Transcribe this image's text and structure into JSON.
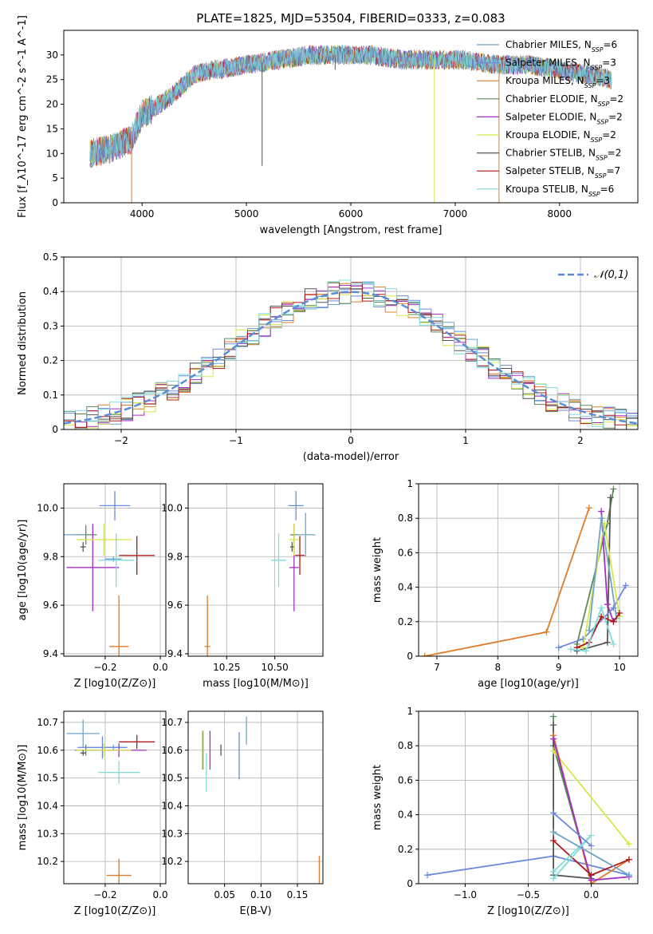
{
  "figure_title": "PLATE=1825, MJD=53504, FIBERID=0333, z=0.083",
  "models": [
    {
      "label": "Chabrier MILES, N_SSP=6",
      "imf": "Chabrier",
      "lib": "MILES",
      "nssp": "6",
      "color": "#6ea5c8"
    },
    {
      "label": "Salpeter MILES, N_SSP=3",
      "imf": "Salpeter",
      "lib": "MILES",
      "nssp": "3",
      "color": "#6b89de"
    },
    {
      "label": "Kroupa MILES, N_SSP=3",
      "imf": "Kroupa",
      "lib": "MILES",
      "nssp": "3",
      "color": "#e07b27"
    },
    {
      "label": "Chabrier ELODIE, N_SSP=2",
      "imf": "Chabrier",
      "lib": "ELODIE",
      "nssp": "2",
      "color": "#5a8a5a"
    },
    {
      "label": "Salpeter ELODIE, N_SSP=2",
      "imf": "Salpeter",
      "lib": "ELODIE",
      "nssp": "2",
      "color": "#a32fc2"
    },
    {
      "label": "Kroupa ELODIE, N_SSP=2",
      "imf": "Kroupa",
      "lib": "ELODIE",
      "nssp": "2",
      "color": "#d8e64a"
    },
    {
      "label": "Chabrier STELIB, N_SSP=2",
      "imf": "Chabrier",
      "lib": "STELIB",
      "nssp": "2",
      "color": "#555555"
    },
    {
      "label": "Salpeter STELIB, N_SSP=7",
      "imf": "Salpeter",
      "lib": "STELIB",
      "nssp": "7",
      "color": "#b01818"
    },
    {
      "label": "Kroupa STELIB, N_SSP=6",
      "imf": "Kroupa",
      "lib": "STELIB",
      "nssp": "6",
      "color": "#7fdcdc"
    }
  ],
  "chart_data": [
    {
      "id": "spectrum",
      "type": "line",
      "xlabel": "wavelength [Angstrom, rest frame]",
      "ylabel": "Flux [f_λ10^-17 erg cm^-2 s^-1 A^-1]",
      "xlim": [
        3250,
        8750
      ],
      "ylim": [
        0,
        35
      ],
      "xticks": [
        4000,
        5000,
        6000,
        7000,
        8000
      ],
      "yticks": [
        0,
        5,
        10,
        15,
        20,
        25,
        30
      ],
      "legend_position": "upper right",
      "continuum_x": [
        3500,
        3700,
        3900,
        4000,
        4100,
        4300,
        4500,
        4700,
        5000,
        5300,
        5600,
        5900,
        6200,
        6500,
        6800,
        7100,
        7400,
        7700,
        8000,
        8300,
        8500
      ],
      "continuum_y": [
        10,
        11,
        13,
        18,
        19,
        22,
        26,
        27,
        28,
        29,
        30,
        30,
        30,
        29,
        29,
        29,
        28,
        28,
        27,
        26,
        25
      ],
      "sharp_dips": [
        {
          "x": 5150,
          "y": 7.5
        },
        {
          "x": 5850,
          "y": 27
        },
        {
          "x": 6800,
          "y": 0
        },
        {
          "x": 7420,
          "y": 0
        },
        {
          "x": 3900,
          "y": 0
        }
      ],
      "grid": false
    },
    {
      "id": "residual_hist",
      "type": "histogram",
      "xlabel": "(data-model)/error",
      "ylabel": "Normed distribution",
      "xlim": [
        -2.5,
        2.5
      ],
      "ylim": [
        0,
        0.5
      ],
      "xticks": [
        -2,
        -1,
        0,
        1,
        2
      ],
      "yticks": [
        0.0,
        0.1,
        0.2,
        0.3,
        0.4,
        0.5
      ],
      "legend": [
        {
          "label": "𝒩(0,1)",
          "color": "#5b8dd6",
          "style": "dashed"
        }
      ],
      "bin_width": 0.1,
      "grid": true
    },
    {
      "id": "age_vs_Z",
      "type": "errorbar",
      "xlabel": "Z [log10(Z/Z⊙)]",
      "ylabel": "age  [log10(age/yr)]",
      "xlim": [
        -0.35,
        0.02
      ],
      "ylim": [
        9.39,
        10.1
      ],
      "xticks": [
        -0.2,
        0.0
      ],
      "xticklabels": [
        "−0.2",
        "0.0"
      ],
      "yticks": [
        9.4,
        9.6,
        9.8,
        10.0
      ],
      "yticklabels": [
        "9.4",
        "9.6",
        "9.8",
        "10.0"
      ],
      "points": [
        {
          "model": 0,
          "x": -0.17,
          "y": 9.79,
          "xerr": 0.03,
          "yerr": 0.01
        },
        {
          "model": 1,
          "x": -0.165,
          "y": 10.01,
          "xerr": 0.055,
          "yerr": 0.06
        },
        {
          "model": 2,
          "x": -0.15,
          "y": 9.43,
          "xerr": 0.035,
          "yerr": 0.21
        },
        {
          "model": 3,
          "x": -0.27,
          "y": 9.89,
          "xerr": 0.04,
          "yerr": 0.04
        },
        {
          "model": 4,
          "x": -0.245,
          "y": 9.755,
          "xerr": 0.095,
          "yerr": 0.18
        },
        {
          "model": 5,
          "x": -0.205,
          "y": 9.87,
          "xerr": 0.1,
          "yerr": 0.065
        },
        {
          "model": 6,
          "x": -0.28,
          "y": 9.84,
          "xerr": 0.01,
          "yerr": 0.02
        },
        {
          "model": 7,
          "x": -0.085,
          "y": 9.805,
          "xerr": 0.065,
          "yerr": 0.08
        },
        {
          "model": 8,
          "x": -0.16,
          "y": 9.785,
          "xerr": 0.065,
          "yerr": 0.11
        },
        {
          "model": 0,
          "x": -0.315,
          "y": 9.89,
          "xerr": 0.045,
          "yerr": 0.0
        }
      ],
      "grid": true
    },
    {
      "id": "age_vs_mass",
      "type": "errorbar",
      "xlabel": "mass [log10(M/M⊙)]",
      "ylabel": "",
      "xlim": [
        10.05,
        10.75
      ],
      "ylim": [
        9.39,
        10.1
      ],
      "xticks": [
        10.25,
        10.5
      ],
      "xticklabels": [
        "10.25",
        "10.50"
      ],
      "yticks": [
        9.4,
        9.6,
        9.8,
        10.0
      ],
      "yticklabels": [
        "9.4",
        "9.6",
        "9.8",
        "10.0"
      ],
      "points": [
        {
          "model": 1,
          "x": 10.61,
          "y": 10.01,
          "xerr": 0.04,
          "yerr": 0.06
        },
        {
          "model": 2,
          "x": 10.15,
          "y": 9.43,
          "xerr": 0.015,
          "yerr": 0.21
        },
        {
          "model": 3,
          "x": 10.6,
          "y": 9.89,
          "xerr": 0.02,
          "yerr": 0.04
        },
        {
          "model": 4,
          "x": 10.6,
          "y": 9.755,
          "xerr": 0.025,
          "yerr": 0.18
        },
        {
          "model": 5,
          "x": 10.6,
          "y": 9.87,
          "xerr": 0.025,
          "yerr": 0.065
        },
        {
          "model": 6,
          "x": 10.59,
          "y": 9.84,
          "xerr": 0.01,
          "yerr": 0.02
        },
        {
          "model": 7,
          "x": 10.63,
          "y": 9.805,
          "xerr": 0.025,
          "yerr": 0.08
        },
        {
          "model": 8,
          "x": 10.52,
          "y": 9.785,
          "xerr": 0.04,
          "yerr": 0.11
        },
        {
          "model": 0,
          "x": 10.66,
          "y": 9.89,
          "xerr": 0.05,
          "yerr": 0.09
        }
      ],
      "grid": true
    },
    {
      "id": "weight_vs_age",
      "type": "line",
      "xlabel": "age  [log10(age/yr)]",
      "ylabel": "mass weight",
      "xlim": [
        6.7,
        10.3
      ],
      "ylim": [
        0,
        1
      ],
      "xticks": [
        7,
        8,
        9,
        10
      ],
      "yticks": [
        0.0,
        0.2,
        0.4,
        0.6,
        0.8,
        1.0
      ],
      "series": [
        {
          "model": 2,
          "x": [
            6.8,
            8.8,
            9.5
          ],
          "y": [
            0.0,
            0.14,
            0.86
          ]
        },
        {
          "model": 3,
          "x": [
            9.3,
            9.8,
            9.9
          ],
          "y": [
            0.07,
            0.77,
            0.97
          ]
        },
        {
          "model": 6,
          "x": [
            9.3,
            9.8,
            9.85
          ],
          "y": [
            0.03,
            0.08,
            0.92
          ]
        },
        {
          "model": 4,
          "x": [
            9.7,
            9.8,
            9.9
          ],
          "y": [
            0.84,
            0.3,
            0.2
          ]
        },
        {
          "model": 1,
          "x": [
            9.0,
            9.4,
            9.9,
            10.1
          ],
          "y": [
            0.05,
            0.1,
            0.28,
            0.41
          ]
        },
        {
          "model": 5,
          "x": [
            9.4,
            9.75,
            10.0
          ],
          "y": [
            0.05,
            0.77,
            0.23
          ]
        },
        {
          "model": 0,
          "x": [
            9.5,
            9.7,
            9.95
          ],
          "y": [
            0.15,
            0.8,
            0.22
          ]
        },
        {
          "model": 7,
          "x": [
            9.3,
            9.5,
            9.7,
            9.9,
            10.0
          ],
          "y": [
            0.05,
            0.08,
            0.23,
            0.2,
            0.25
          ]
        },
        {
          "model": 8,
          "x": [
            9.2,
            9.45,
            9.7,
            9.9
          ],
          "y": [
            0.04,
            0.03,
            0.28,
            0.07
          ]
        }
      ],
      "grid": true
    },
    {
      "id": "mass_vs_Z",
      "type": "errorbar",
      "xlabel": "Z [log10(Z/Z⊙)]",
      "ylabel": "mass [log10(M/M⊙)]",
      "xlim": [
        -0.35,
        0.02
      ],
      "ylim": [
        10.12,
        10.74
      ],
      "xticks": [
        -0.2,
        0.0
      ],
      "xticklabels": [
        "−0.2",
        "0.0"
      ],
      "yticks": [
        10.2,
        10.3,
        10.4,
        10.5,
        10.6,
        10.7
      ],
      "yticklabels": [
        "10.2",
        "10.3",
        "10.4",
        "10.5",
        "10.6",
        "10.7"
      ],
      "points": [
        {
          "model": 0,
          "x": -0.17,
          "y": 10.61,
          "xerr": 0.03,
          "yerr": 0.01
        },
        {
          "model": 1,
          "x": -0.21,
          "y": 10.61,
          "xerr": 0.09,
          "yerr": 0.04
        },
        {
          "model": 2,
          "x": -0.15,
          "y": 10.15,
          "xerr": 0.045,
          "yerr": 0.06
        },
        {
          "model": 3,
          "x": -0.27,
          "y": 10.6,
          "xerr": 0.04,
          "yerr": 0.02
        },
        {
          "model": 4,
          "x": -0.15,
          "y": 10.6,
          "xerr": 0.1,
          "yerr": 0.025
        },
        {
          "model": 5,
          "x": -0.205,
          "y": 10.6,
          "xerr": 0.1,
          "yerr": 0.025
        },
        {
          "model": 6,
          "x": -0.28,
          "y": 10.59,
          "xerr": 0.01,
          "yerr": 0.01
        },
        {
          "model": 7,
          "x": -0.085,
          "y": 10.63,
          "xerr": 0.065,
          "yerr": 0.025
        },
        {
          "model": 8,
          "x": -0.15,
          "y": 10.52,
          "xerr": 0.075,
          "yerr": 0.04
        },
        {
          "model": 0,
          "x": -0.28,
          "y": 10.66,
          "xerr": 0.06,
          "yerr": 0.05
        }
      ],
      "grid": true
    },
    {
      "id": "mass_vs_ebv",
      "type": "errorbar",
      "xlabel": "E(B-V)",
      "ylabel": "",
      "xlim": [
        0.0,
        0.185
      ],
      "ylim": [
        10.12,
        10.74
      ],
      "xticks": [
        0.05,
        0.1,
        0.15
      ],
      "xticklabels": [
        "0.05",
        "0.10",
        "0.15"
      ],
      "yticks": [
        10.2,
        10.3,
        10.4,
        10.5,
        10.6,
        10.7
      ],
      "yticklabels": [
        "10.2",
        "10.3",
        "10.4",
        "10.5",
        "10.6",
        "10.7"
      ],
      "points": [
        {
          "model": 3,
          "x": 0.02,
          "y": 10.6,
          "xerr": 0,
          "yerr": 0.07
        },
        {
          "model": 5,
          "x": 0.021,
          "y": 10.6,
          "xerr": 0,
          "yerr": 0.07
        },
        {
          "model": 8,
          "x": 0.025,
          "y": 10.52,
          "xerr": 0,
          "yerr": 0.07
        },
        {
          "model": 4,
          "x": 0.03,
          "y": 10.6,
          "xerr": 0,
          "yerr": 0.07
        },
        {
          "model": 6,
          "x": 0.045,
          "y": 10.6,
          "xerr": 0,
          "yerr": 0.02
        },
        {
          "model": 1,
          "x": 0.07,
          "y": 10.58,
          "xerr": 0,
          "yerr": 0.085
        },
        {
          "model": 0,
          "x": 0.08,
          "y": 10.67,
          "xerr": 0,
          "yerr": 0.05
        },
        {
          "model": 2,
          "x": 0.18,
          "y": 10.17,
          "xerr": 0,
          "yerr": 0.05
        }
      ],
      "grid": true
    },
    {
      "id": "weight_vs_Z",
      "type": "line",
      "xlabel": "Z [log10(Z/Z⊙)]",
      "ylabel": "mass weight",
      "xlim": [
        -1.37,
        0.37
      ],
      "ylim": [
        0,
        1
      ],
      "xticks": [
        -1.0,
        -0.5,
        0.0
      ],
      "xticklabels": [
        "−1.0",
        "−0.5",
        "0.0"
      ],
      "yticks": [
        0.0,
        0.2,
        0.4,
        0.6,
        0.8,
        1.0
      ],
      "series": [
        {
          "model": 1,
          "x": [
            -1.3,
            -0.3,
            0.3
          ],
          "y": [
            0.05,
            0.16,
            0.05
          ]
        },
        {
          "model": 3,
          "x": [
            -0.3,
            -0.3,
            0.0
          ],
          "y": [
            0.97,
            0.8,
            0.02
          ]
        },
        {
          "model": 6,
          "x": [
            -0.3,
            -0.3,
            0.0
          ],
          "y": [
            0.92,
            0.05,
            0.03
          ]
        },
        {
          "model": 5,
          "x": [
            -0.3,
            0.3
          ],
          "y": [
            0.77,
            0.23
          ]
        },
        {
          "model": 2,
          "x": [
            -0.3,
            0.0,
            0.3
          ],
          "y": [
            0.86,
            0.0,
            0.14
          ]
        },
        {
          "model": 4,
          "x": [
            -0.3,
            0.0,
            0.3
          ],
          "y": [
            0.84,
            0.02,
            0.04
          ]
        },
        {
          "model": 7,
          "x": [
            -0.3,
            0.0,
            0.3
          ],
          "y": [
            0.25,
            0.05,
            0.14
          ]
        },
        {
          "model": 8,
          "x": [
            -0.3,
            0.0,
            -0.3
          ],
          "y": [
            0.03,
            0.28,
            0.07
          ]
        },
        {
          "model": 0,
          "x": [
            -0.3,
            0.3
          ],
          "y": [
            0.3,
            0.05
          ]
        },
        {
          "model": 1,
          "x": [
            -0.3,
            0.0
          ],
          "y": [
            0.41,
            0.22
          ]
        }
      ],
      "grid": true
    }
  ]
}
